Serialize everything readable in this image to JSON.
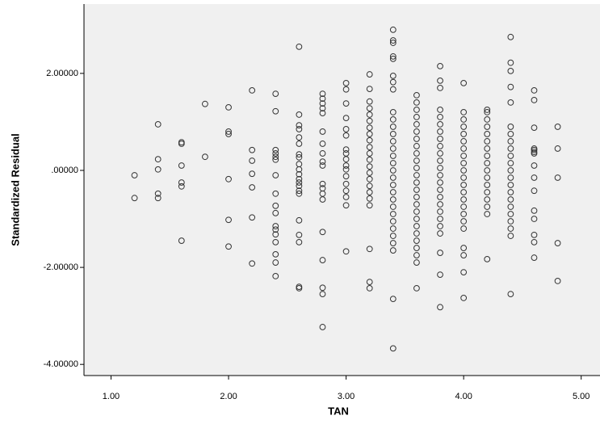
{
  "chart_data": {
    "type": "scatter",
    "x_label": "TAN",
    "y_label": "Standardized Residual",
    "xlim": [
      0.77,
      5.16
    ],
    "ylim": [
      -4.23,
      3.43
    ],
    "xticks": [
      {
        "value": 1,
        "label": "1.00"
      },
      {
        "value": 2,
        "label": "2.00"
      },
      {
        "value": 3,
        "label": "3.00"
      },
      {
        "value": 4,
        "label": "4.00"
      },
      {
        "value": 5,
        "label": "5.00"
      }
    ],
    "yticks": [
      {
        "value": 2,
        "label": "2.00000"
      },
      {
        "value": 0,
        "label": ".00000"
      },
      {
        "value": -2,
        "label": "-2.00000"
      },
      {
        "value": -4,
        "label": "-4.00000"
      }
    ],
    "color": "#333333",
    "background": "#f0f0f0",
    "columns": [
      {
        "x": 1.2,
        "y": [
          -0.1,
          -0.57
        ]
      },
      {
        "x": 1.4,
        "y": [
          0.95,
          0.23,
          0.02,
          -0.48,
          -0.57
        ]
      },
      {
        "x": 1.6,
        "y": [
          0.58,
          0.55,
          0.1,
          -0.25,
          -0.33,
          -1.45
        ]
      },
      {
        "x": 1.8,
        "y": [
          1.37,
          0.28
        ]
      },
      {
        "x": 2.0,
        "y": [
          1.3,
          0.8,
          0.75,
          -0.18,
          -1.02,
          -1.57
        ]
      },
      {
        "x": 2.2,
        "y": [
          1.65,
          0.42,
          0.2,
          -0.07,
          -0.35,
          -0.97,
          -1.92
        ]
      },
      {
        "x": 2.4,
        "y": [
          1.58,
          1.22,
          0.42,
          0.35,
          0.28,
          0.22,
          -0.1,
          -0.48,
          -0.73,
          -0.88,
          -1.15,
          -1.22,
          -1.32,
          -1.48,
          -1.73,
          -1.9,
          -2.18
        ]
      },
      {
        "x": 2.6,
        "y": [
          2.55,
          1.15,
          0.93,
          0.85,
          0.68,
          0.55,
          0.33,
          0.27,
          0.13,
          0.02,
          -0.08,
          -0.18,
          -0.25,
          -0.32,
          -0.42,
          -0.48,
          -1.03,
          -1.33,
          -1.48,
          -2.4,
          -2.43
        ]
      },
      {
        "x": 2.8,
        "y": [
          1.58,
          1.48,
          1.38,
          1.28,
          1.18,
          0.8,
          0.55,
          0.35,
          0.18,
          0.1,
          -0.28,
          -0.37,
          -0.48,
          -0.6,
          -1.27,
          -1.85,
          -2.42,
          -2.55,
          -3.23
        ]
      },
      {
        "x": 3.0,
        "y": [
          1.8,
          1.67,
          1.38,
          1.08,
          0.85,
          0.72,
          0.43,
          0.35,
          0.23,
          0.1,
          0.02,
          -0.12,
          -0.28,
          -0.42,
          -0.55,
          -0.72,
          -1.67
        ]
      },
      {
        "x": 3.2,
        "y": [
          1.98,
          1.68,
          1.42,
          1.28,
          1.15,
          1.02,
          0.88,
          0.75,
          0.62,
          0.48,
          0.35,
          0.22,
          0.08,
          -0.05,
          -0.18,
          -0.32,
          -0.45,
          -0.58,
          -0.72,
          -1.62,
          -2.3,
          -2.43
        ]
      },
      {
        "x": 3.4,
        "y": [
          2.9,
          2.68,
          2.63,
          2.35,
          2.3,
          1.95,
          1.82,
          1.67,
          1.2,
          1.05,
          0.9,
          0.75,
          0.6,
          0.45,
          0.3,
          0.15,
          0,
          -0.15,
          -0.3,
          -0.45,
          -0.6,
          -0.75,
          -0.9,
          -1.05,
          -1.2,
          -1.35,
          -1.5,
          -1.65,
          -2.65,
          -3.67
        ]
      },
      {
        "x": 3.6,
        "y": [
          1.55,
          1.4,
          1.25,
          1.1,
          0.95,
          0.8,
          0.65,
          0.5,
          0.35,
          0.2,
          0.05,
          -0.1,
          -0.25,
          -0.4,
          -0.55,
          -0.7,
          -0.85,
          -1,
          -1.15,
          -1.3,
          -1.45,
          -1.6,
          -1.75,
          -1.9,
          -2.43
        ]
      },
      {
        "x": 3.8,
        "y": [
          2.15,
          1.85,
          1.7,
          1.25,
          1.1,
          0.95,
          0.8,
          0.65,
          0.5,
          0.35,
          0.2,
          0.05,
          -0.1,
          -0.25,
          -0.4,
          -0.55,
          -0.7,
          -0.85,
          -1,
          -1.15,
          -1.3,
          -1.7,
          -2.15,
          -2.82
        ]
      },
      {
        "x": 4.0,
        "y": [
          1.8,
          1.2,
          1.05,
          0.9,
          0.75,
          0.6,
          0.45,
          0.3,
          0.15,
          0,
          -0.15,
          -0.3,
          -0.45,
          -0.6,
          -0.75,
          -0.9,
          -1.05,
          -1.2,
          -1.6,
          -1.75,
          -2.1,
          -2.63
        ]
      },
      {
        "x": 4.2,
        "y": [
          1.25,
          1.2,
          1.05,
          0.9,
          0.75,
          0.6,
          0.45,
          0.3,
          0.15,
          0,
          -0.15,
          -0.3,
          -0.45,
          -0.6,
          -0.75,
          -0.9,
          -1.83
        ]
      },
      {
        "x": 4.4,
        "y": [
          2.75,
          2.22,
          2.05,
          1.72,
          1.4,
          0.9,
          0.75,
          0.6,
          0.45,
          0.3,
          0.15,
          0,
          -0.15,
          -0.3,
          -0.45,
          -0.6,
          -0.75,
          -0.9,
          -1.05,
          -1.2,
          -1.35,
          -2.55
        ]
      },
      {
        "x": 4.6,
        "y": [
          1.65,
          1.45,
          0.88,
          0.45,
          0.42,
          0.38,
          0.35,
          0.1,
          -0.15,
          -0.42,
          -0.83,
          -1.0,
          -1.33,
          -1.48,
          -1.8
        ]
      },
      {
        "x": 4.8,
        "y": [
          0.9,
          0.45,
          -0.15,
          -1.5,
          -2.28
        ]
      }
    ]
  }
}
